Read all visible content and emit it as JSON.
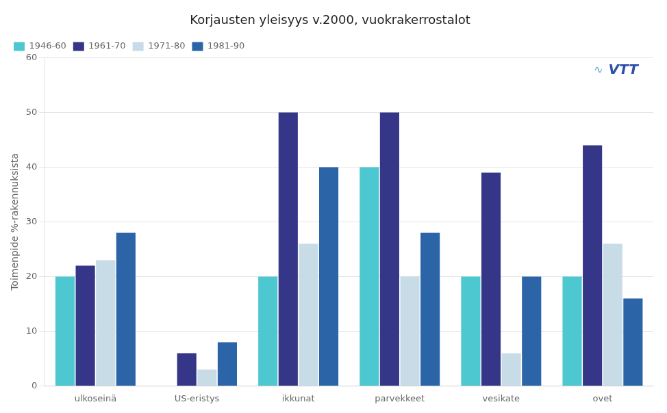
{
  "chart_data": {
    "type": "bar",
    "title": "Korjausten yleisyys v.2000, vuokrakerrostalot",
    "ylabel": "Toimenpide %-rakennuksista",
    "categories": [
      "ulkoseinä",
      "US-eristys",
      "ikkunat",
      "parvekkeet",
      "vesikate",
      "ovet"
    ],
    "series": [
      {
        "name": "1946-60",
        "color": "#4EC8D0",
        "values": [
          20,
          0,
          20,
          40,
          20,
          20
        ]
      },
      {
        "name": "1961-70",
        "color": "#363689",
        "values": [
          22,
          6,
          50,
          50,
          39,
          44
        ]
      },
      {
        "name": "1971-80",
        "color": "#C8DCE8",
        "values": [
          23,
          3,
          26,
          20,
          6,
          26
        ]
      },
      {
        "name": "1981-90",
        "color": "#2B65A8",
        "values": [
          28,
          8,
          40,
          28,
          20,
          16
        ]
      }
    ],
    "ylim": [
      0,
      60
    ],
    "yticks": [
      0,
      10,
      20,
      30,
      40,
      50,
      60
    ],
    "grid": true,
    "legend": "upper left",
    "annotations": [
      {
        "text": "VTT",
        "color": "#2B4FAA"
      },
      {
        "text": "∿",
        "color": "#5BAAD0"
      }
    ]
  }
}
